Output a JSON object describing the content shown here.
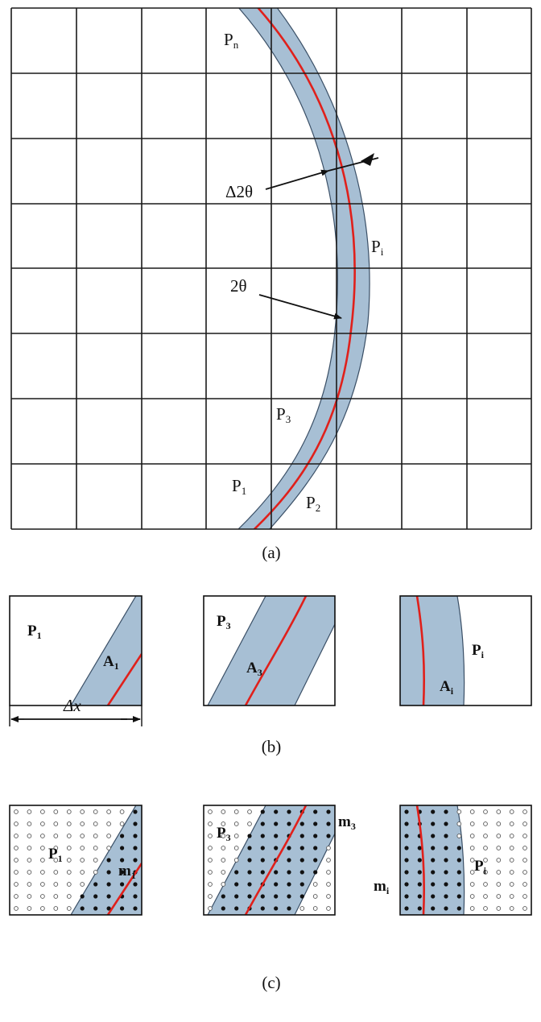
{
  "panel_a": {
    "labels": {
      "pn": "P",
      "pn_sub": "n",
      "pi": "P",
      "pi_sub": "i",
      "p3": "P",
      "p3_sub": "3",
      "p1": "P",
      "p1_sub": "1",
      "p2": "P",
      "p2_sub": "2",
      "delta_two_theta": "Δ2θ",
      "two_theta": "2θ"
    },
    "caption": "(a)"
  },
  "panel_b": {
    "box1": {
      "p": "P",
      "p_sub": "1",
      "a": "A",
      "a_sub": "1"
    },
    "box2": {
      "p": "P",
      "p_sub": "3",
      "a": "A",
      "a_sub": "3"
    },
    "box3": {
      "p": "P",
      "p_sub": "i",
      "a": "A",
      "a_sub": "i"
    },
    "dimension": "Δx",
    "caption": "(b)"
  },
  "panel_c": {
    "box1": {
      "p": "P",
      "p_sub": "1",
      "m": "m",
      "m_sub": "1"
    },
    "box2": {
      "p": "P",
      "p_sub": "3",
      "m": "m",
      "m_sub": "3"
    },
    "box3": {
      "p": "P",
      "p_sub": "i",
      "m": "m",
      "m_sub": "i"
    },
    "caption": "(c)"
  },
  "colors": {
    "band": "#a7bfd4",
    "ridge": "#e0201b",
    "grid": "#1a1a1a"
  }
}
